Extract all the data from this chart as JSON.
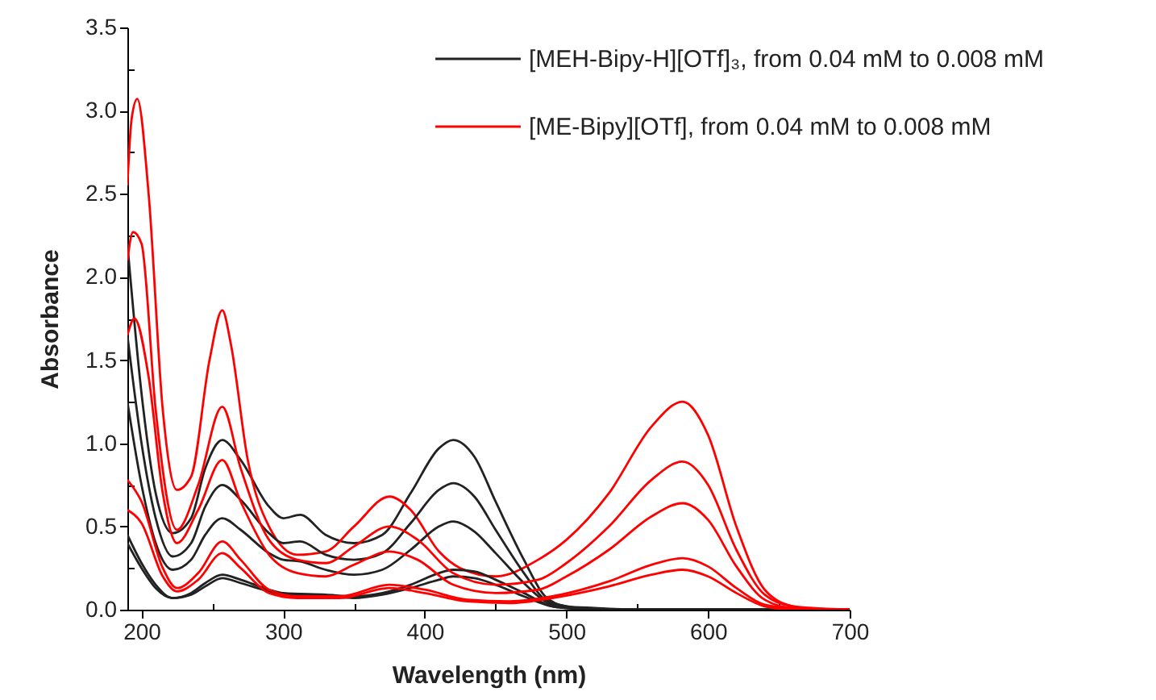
{
  "chart_data": {
    "type": "line",
    "xlabel": "Wavelength (nm)",
    "ylabel": "Absorbance",
    "xlim": [
      190,
      700
    ],
    "ylim": [
      0,
      3.5
    ],
    "xticks": [
      200,
      {
        "value": 250,
        "label": null
      },
      300,
      {
        "value": 350,
        "label": null
      },
      400,
      {
        "value": 450,
        "label": null
      },
      500,
      {
        "value": 550,
        "label": null
      },
      600,
      {
        "value": 650,
        "label": null
      },
      700
    ],
    "yticks": [
      {
        "value": 0,
        "label": "0.0"
      },
      {
        "value": 0.25,
        "label": null
      },
      0.5,
      {
        "value": 0.75,
        "label": null
      },
      {
        "value": 1,
        "label": "1.0"
      },
      {
        "value": 1.25,
        "label": null
      },
      1.5,
      {
        "value": 1.75,
        "label": null
      },
      {
        "value": 2,
        "label": "2.0"
      },
      {
        "value": 2.25,
        "label": null
      },
      2.5,
      {
        "value": 2.75,
        "label": null
      },
      {
        "value": 3,
        "label": "3.0"
      },
      {
        "value": 3.25,
        "label": null
      },
      3.5
    ],
    "legend": "top right",
    "line_style": "solid",
    "marker": "none",
    "series": [
      {
        "name": "[MEH-Bipy-H][OTf]₃, from 0.04 mM to 0.008 mM",
        "color": "#222222",
        "x": [
          190,
          200,
          210,
          222,
          235,
          245,
          257,
          270,
          290,
          300,
          312,
          330,
          350,
          370,
          390,
          410,
          420,
          435,
          450,
          470,
          485,
          500,
          520,
          550,
          700
        ],
        "values": [
          2.2,
          1.3,
          0.7,
          0.46,
          0.55,
          0.85,
          1.02,
          0.9,
          0.62,
          0.55,
          0.57,
          0.45,
          0.4,
          0.45,
          0.7,
          0.97,
          1.02,
          0.92,
          0.65,
          0.3,
          0.08,
          0.02,
          0.01,
          0,
          0
        ]
      },
      {
        "color": "#222222",
        "x": [
          190,
          200,
          210,
          222,
          235,
          245,
          257,
          270,
          290,
          300,
          312,
          330,
          350,
          370,
          390,
          410,
          420,
          435,
          450,
          470,
          485,
          500,
          520,
          550,
          700
        ],
        "values": [
          1.65,
          1.0,
          0.55,
          0.32,
          0.4,
          0.62,
          0.75,
          0.66,
          0.46,
          0.4,
          0.41,
          0.33,
          0.3,
          0.34,
          0.52,
          0.72,
          0.76,
          0.68,
          0.48,
          0.22,
          0.06,
          0.02,
          0,
          0,
          0
        ]
      },
      {
        "color": "#222222",
        "x": [
          190,
          200,
          210,
          222,
          235,
          245,
          257,
          270,
          290,
          300,
          312,
          330,
          350,
          370,
          390,
          410,
          420,
          435,
          450,
          470,
          485,
          500,
          520,
          550,
          700
        ],
        "values": [
          1.25,
          0.75,
          0.4,
          0.24,
          0.3,
          0.45,
          0.55,
          0.48,
          0.34,
          0.3,
          0.29,
          0.24,
          0.21,
          0.24,
          0.36,
          0.5,
          0.53,
          0.47,
          0.34,
          0.16,
          0.05,
          0.01,
          0,
          0,
          0
        ]
      },
      {
        "color": "#222222",
        "x": [
          190,
          200,
          210,
          222,
          235,
          245,
          257,
          270,
          290,
          300,
          330,
          350,
          370,
          390,
          410,
          420,
          435,
          450,
          470,
          490,
          500,
          520,
          550,
          700
        ],
        "values": [
          0.45,
          0.28,
          0.15,
          0.07,
          0.1,
          0.16,
          0.21,
          0.18,
          0.12,
          0.1,
          0.09,
          0.08,
          0.1,
          0.15,
          0.22,
          0.24,
          0.23,
          0.18,
          0.1,
          0.02,
          0.01,
          0,
          0,
          0
        ]
      },
      {
        "color": "#222222",
        "x": [
          190,
          200,
          210,
          222,
          235,
          245,
          257,
          270,
          290,
          300,
          330,
          350,
          370,
          390,
          410,
          420,
          435,
          450,
          470,
          490,
          500,
          520,
          550,
          700
        ],
        "values": [
          0.4,
          0.25,
          0.13,
          0.07,
          0.09,
          0.14,
          0.19,
          0.16,
          0.11,
          0.09,
          0.08,
          0.07,
          0.09,
          0.13,
          0.18,
          0.2,
          0.19,
          0.15,
          0.08,
          0.02,
          0.01,
          0,
          0,
          0
        ]
      },
      {
        "name": "[ME-Bipy][OTf], from 0.04 mM to 0.008 mM",
        "color": "#ff0000",
        "x": [
          190,
          193,
          197,
          205,
          215,
          225,
          235,
          248,
          257,
          263,
          275,
          290,
          310,
          330,
          350,
          375,
          390,
          410,
          425,
          450,
          480,
          500,
          530,
          560,
          582,
          600,
          620,
          640,
          660,
          680,
          700
        ],
        "values": [
          2.55,
          2.95,
          3.07,
          2.5,
          1.2,
          0.72,
          0.8,
          1.5,
          1.8,
          1.6,
          0.9,
          0.5,
          0.33,
          0.35,
          0.5,
          0.68,
          0.6,
          0.35,
          0.25,
          0.2,
          0.3,
          0.42,
          0.7,
          1.1,
          1.25,
          1.05,
          0.5,
          0.12,
          0.02,
          0,
          0
        ]
      },
      {
        "color": "#ff0000",
        "x": [
          190,
          194,
          200,
          210,
          225,
          240,
          257,
          270,
          290,
          310,
          330,
          350,
          375,
          395,
          420,
          450,
          480,
          500,
          530,
          560,
          582,
          600,
          620,
          640,
          660,
          700
        ],
        "values": [
          2.1,
          2.27,
          2.2,
          1.2,
          0.48,
          0.75,
          1.22,
          0.85,
          0.42,
          0.3,
          0.28,
          0.38,
          0.5,
          0.42,
          0.22,
          0.15,
          0.18,
          0.28,
          0.5,
          0.78,
          0.89,
          0.75,
          0.36,
          0.09,
          0.02,
          0
        ]
      },
      {
        "color": "#ff0000",
        "x": [
          190,
          195,
          205,
          215,
          225,
          240,
          257,
          270,
          290,
          310,
          330,
          350,
          375,
          395,
          420,
          450,
          480,
          500,
          530,
          560,
          582,
          600,
          620,
          640,
          660,
          700
        ],
        "values": [
          1.65,
          1.75,
          1.4,
          0.7,
          0.4,
          0.6,
          0.9,
          0.65,
          0.33,
          0.22,
          0.2,
          0.27,
          0.35,
          0.3,
          0.15,
          0.1,
          0.12,
          0.2,
          0.36,
          0.56,
          0.64,
          0.54,
          0.26,
          0.06,
          0.01,
          0
        ]
      },
      {
        "color": "#ff0000",
        "x": [
          190,
          200,
          215,
          225,
          240,
          257,
          270,
          290,
          310,
          340,
          375,
          400,
          430,
          460,
          490,
          530,
          560,
          582,
          600,
          620,
          640,
          660,
          700
        ],
        "values": [
          0.78,
          0.65,
          0.25,
          0.13,
          0.22,
          0.41,
          0.3,
          0.12,
          0.08,
          0.08,
          0.15,
          0.12,
          0.06,
          0.05,
          0.08,
          0.17,
          0.27,
          0.31,
          0.26,
          0.13,
          0.03,
          0.01,
          0
        ]
      },
      {
        "color": "#ff0000",
        "x": [
          190,
          200,
          215,
          225,
          240,
          257,
          270,
          290,
          310,
          340,
          375,
          400,
          430,
          460,
          490,
          530,
          560,
          582,
          600,
          620,
          640,
          660,
          700
        ],
        "values": [
          0.6,
          0.52,
          0.2,
          0.11,
          0.18,
          0.34,
          0.25,
          0.1,
          0.07,
          0.07,
          0.13,
          0.1,
          0.05,
          0.04,
          0.07,
          0.14,
          0.21,
          0.24,
          0.2,
          0.1,
          0.02,
          0,
          0
        ]
      }
    ]
  }
}
